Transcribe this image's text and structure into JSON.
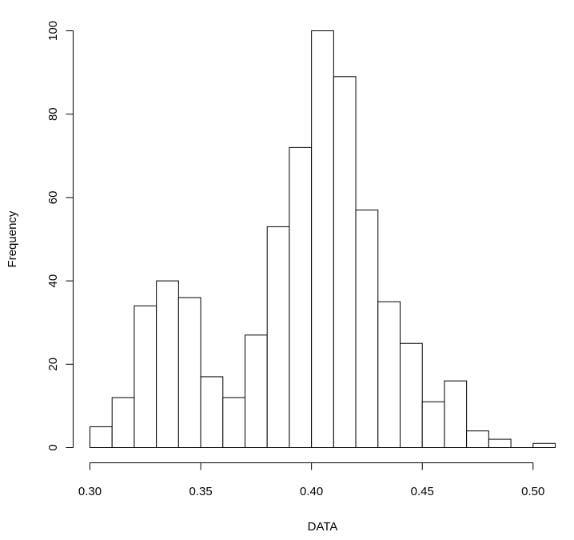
{
  "chart_data": {
    "type": "bar",
    "title": "",
    "xlabel": "DATA",
    "ylabel": "Frequency",
    "bin_edges": [
      0.3,
      0.31,
      0.32,
      0.33,
      0.34,
      0.35,
      0.36,
      0.37,
      0.38,
      0.39,
      0.4,
      0.41,
      0.42,
      0.43,
      0.44,
      0.45,
      0.46,
      0.47,
      0.48,
      0.49,
      0.5,
      0.51
    ],
    "values": [
      5,
      12,
      34,
      40,
      36,
      17,
      12,
      27,
      53,
      72,
      100,
      89,
      57,
      35,
      25,
      11,
      16,
      4,
      2,
      0,
      1
    ],
    "xlim": [
      0.3,
      0.51
    ],
    "ylim": [
      0,
      100
    ],
    "x_ticks": [
      0.3,
      0.35,
      0.4,
      0.45,
      0.5
    ],
    "x_tick_labels": [
      "0.30",
      "0.35",
      "0.40",
      "0.45",
      "0.50"
    ],
    "y_ticks": [
      0,
      20,
      40,
      60,
      80,
      100
    ],
    "y_tick_labels": [
      "0",
      "20",
      "40",
      "60",
      "80",
      "100"
    ],
    "grid": false,
    "legend": "none",
    "bar_fill": "#ffffff",
    "bar_stroke": "#000000"
  }
}
